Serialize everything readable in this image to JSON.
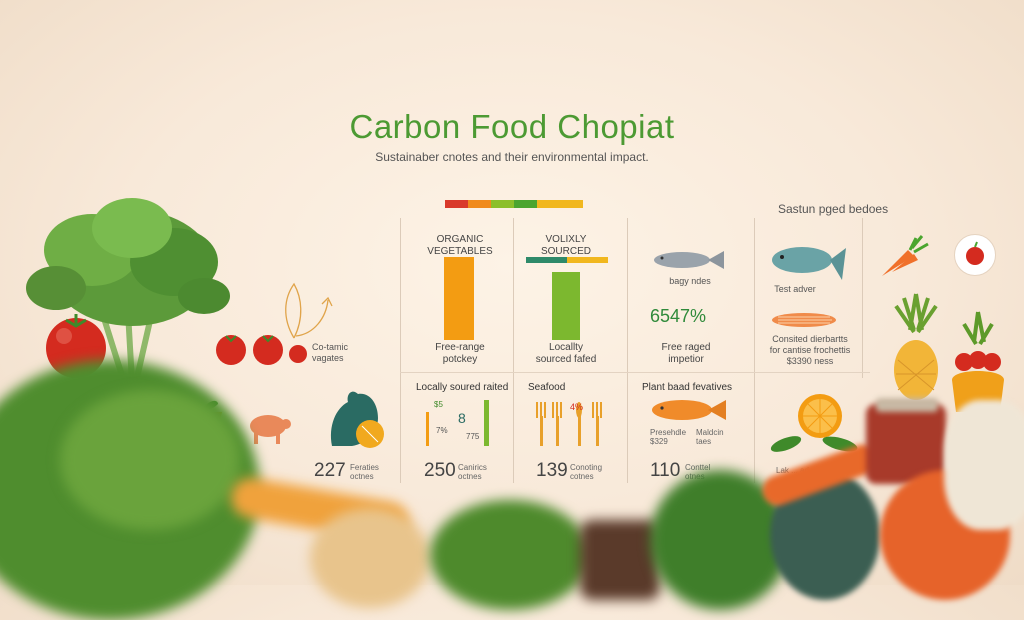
{
  "header": {
    "title": "Carbon Food Chopiat",
    "subtitle": "Sustainaber cnotes and their environmental impact.",
    "right_label": "Sastun pged bedoes"
  },
  "colors": {
    "title": "#4c9a33",
    "gradient": [
      "#d93a2b",
      "#f08a1c",
      "#8cbf2a",
      "#4ba52f",
      "#f1b71e"
    ],
    "orange_bar": "#f39c12",
    "green_bar": "#7cb82f"
  },
  "panel_top": {
    "organic": {
      "heading_line1": "ORGANIC",
      "heading_line2": "VEGETABLES",
      "caption_line1": "Free-range",
      "caption_line2": "potckey"
    },
    "local": {
      "heading_line1": "VOLIXLY",
      "heading_line2": "SOURCED",
      "caption_line1": "Locallty",
      "caption_line2": "sourced fafed"
    },
    "fish": {
      "small_label": "bagy ndes",
      "percent": "6547%",
      "caption_line1": "Free raged",
      "caption_line2": "impetior"
    },
    "salmon": {
      "label": "Test adver",
      "caption_line1": "Consited dierbartts",
      "caption_line2": "for cantise frochettis",
      "caption_line3": "$3390 ness"
    },
    "left": {
      "label_line1": "Co-tamic",
      "label_line2": "vagates"
    }
  },
  "panel_bottom": {
    "col1": {
      "number": "227",
      "note_line1": "Feraties",
      "note_line2": "octnes"
    },
    "col2": {
      "heading": "Locally soured raited",
      "number": "250",
      "note_line1": "Canirics",
      "note_line2": "octnes",
      "mini_1": "$5",
      "mini_2": "7%",
      "mini_3": "775",
      "mini_4": "8"
    },
    "col3": {
      "heading": "Seafood",
      "number": "139",
      "note_line1": "Conoting",
      "note_line2": "cotnes",
      "mini": "4%"
    },
    "col4": {
      "heading": "Plant baad fevatives",
      "number": "110",
      "note_line1": "Conttel",
      "note_line2": "otnes",
      "left_line1": "Presehdle",
      "left_line2": "$329",
      "right_line1": "Maldcin",
      "right_line2": "taes"
    },
    "col5": {
      "label": "Lak ... ad"
    }
  },
  "icons": [
    "lettuce-icon",
    "tomato-icon",
    "carrot-icon",
    "fish-icon",
    "salmon-icon",
    "rooster-icon",
    "pig-icon",
    "plant-pot-icon",
    "fork-icon",
    "orange-icon",
    "pineapple-icon",
    "bell-pepper-icon",
    "jar-icon"
  ]
}
